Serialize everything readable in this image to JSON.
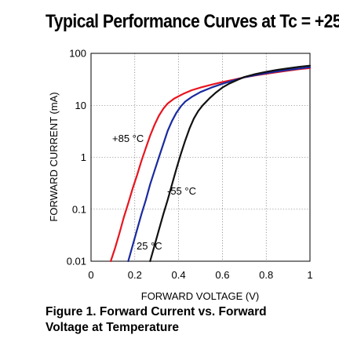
{
  "page": {
    "title": "Typical Performance Curves at Tc = +25",
    "caption_line1": "Figure 1. Forward Current vs. Forward",
    "caption_line2": "Voltage at Temperature"
  },
  "chart_data": {
    "type": "line",
    "xlabel": "FORWARD VOLTAGE (V)",
    "ylabel": "FORWARD CURRENT (mA)",
    "xlim": [
      0,
      1
    ],
    "ylim": [
      0.01,
      100
    ],
    "yscale": "log",
    "grid": true,
    "x_ticks": [
      0,
      0.2,
      0.4,
      0.6,
      0.8,
      1
    ],
    "x_tick_labels": [
      "0",
      "0.2",
      "0.4",
      "0.6",
      "0.8",
      "1"
    ],
    "y_ticks": [
      0.01,
      0.1,
      1,
      10,
      100
    ],
    "y_tick_labels": [
      "0.01",
      "0.1",
      "1",
      "10",
      "100"
    ],
    "series": [
      {
        "name": "+85 °C",
        "color": "#e8141e",
        "points": [
          [
            0.09,
            0.01
          ],
          [
            0.11,
            0.018
          ],
          [
            0.13,
            0.035
          ],
          [
            0.15,
            0.07
          ],
          [
            0.17,
            0.13
          ],
          [
            0.19,
            0.25
          ],
          [
            0.21,
            0.45
          ],
          [
            0.23,
            0.85
          ],
          [
            0.25,
            1.5
          ],
          [
            0.27,
            2.6
          ],
          [
            0.29,
            4.2
          ],
          [
            0.31,
            6.3
          ],
          [
            0.33,
            8.6
          ],
          [
            0.35,
            10.8
          ],
          [
            0.38,
            13.5
          ],
          [
            0.42,
            16.5
          ],
          [
            0.46,
            19.5
          ],
          [
            0.5,
            22
          ],
          [
            0.55,
            25
          ],
          [
            0.6,
            28
          ],
          [
            0.65,
            31
          ],
          [
            0.7,
            34.5
          ],
          [
            0.75,
            37.5
          ],
          [
            0.8,
            40.5
          ],
          [
            0.85,
            43.5
          ],
          [
            0.9,
            46.5
          ],
          [
            0.95,
            49.5
          ],
          [
            1.0,
            52
          ]
        ]
      },
      {
        "name": "25 °C",
        "color": "#1a2aa0",
        "points": [
          [
            0.17,
            0.01
          ],
          [
            0.19,
            0.02
          ],
          [
            0.21,
            0.04
          ],
          [
            0.23,
            0.08
          ],
          [
            0.25,
            0.15
          ],
          [
            0.27,
            0.3
          ],
          [
            0.29,
            0.55
          ],
          [
            0.31,
            1.0
          ],
          [
            0.33,
            1.8
          ],
          [
            0.35,
            3.2
          ],
          [
            0.37,
            5.0
          ],
          [
            0.39,
            7.2
          ],
          [
            0.41,
            9.5
          ],
          [
            0.43,
            11.8
          ],
          [
            0.46,
            14.5
          ],
          [
            0.5,
            18
          ],
          [
            0.55,
            22
          ],
          [
            0.6,
            26
          ],
          [
            0.65,
            30
          ],
          [
            0.7,
            34.5
          ],
          [
            0.75,
            38
          ],
          [
            0.8,
            41.5
          ],
          [
            0.85,
            45
          ],
          [
            0.9,
            48
          ],
          [
            0.95,
            51
          ],
          [
            1.0,
            54
          ]
        ]
      },
      {
        "name": "-55 °C",
        "color": "#111111",
        "points": [
          [
            0.27,
            0.01
          ],
          [
            0.29,
            0.02
          ],
          [
            0.31,
            0.04
          ],
          [
            0.33,
            0.08
          ],
          [
            0.35,
            0.15
          ],
          [
            0.37,
            0.3
          ],
          [
            0.39,
            0.6
          ],
          [
            0.41,
            1.15
          ],
          [
            0.43,
            2.1
          ],
          [
            0.45,
            3.6
          ],
          [
            0.47,
            5.6
          ],
          [
            0.49,
            7.8
          ],
          [
            0.51,
            10
          ],
          [
            0.54,
            13.5
          ],
          [
            0.57,
            17.5
          ],
          [
            0.6,
            22
          ],
          [
            0.63,
            26
          ],
          [
            0.67,
            31
          ],
          [
            0.7,
            35
          ],
          [
            0.75,
            40
          ],
          [
            0.8,
            44
          ],
          [
            0.85,
            48
          ],
          [
            0.9,
            51.5
          ],
          [
            0.95,
            55
          ],
          [
            1.0,
            58
          ]
        ]
      }
    ],
    "annotations": [
      {
        "text": "+85 °C",
        "series": "+85 °C"
      },
      {
        "text": "25 °C",
        "series": "25 °C"
      },
      {
        "text": "-55 °C",
        "series": "-55 °C"
      }
    ]
  }
}
